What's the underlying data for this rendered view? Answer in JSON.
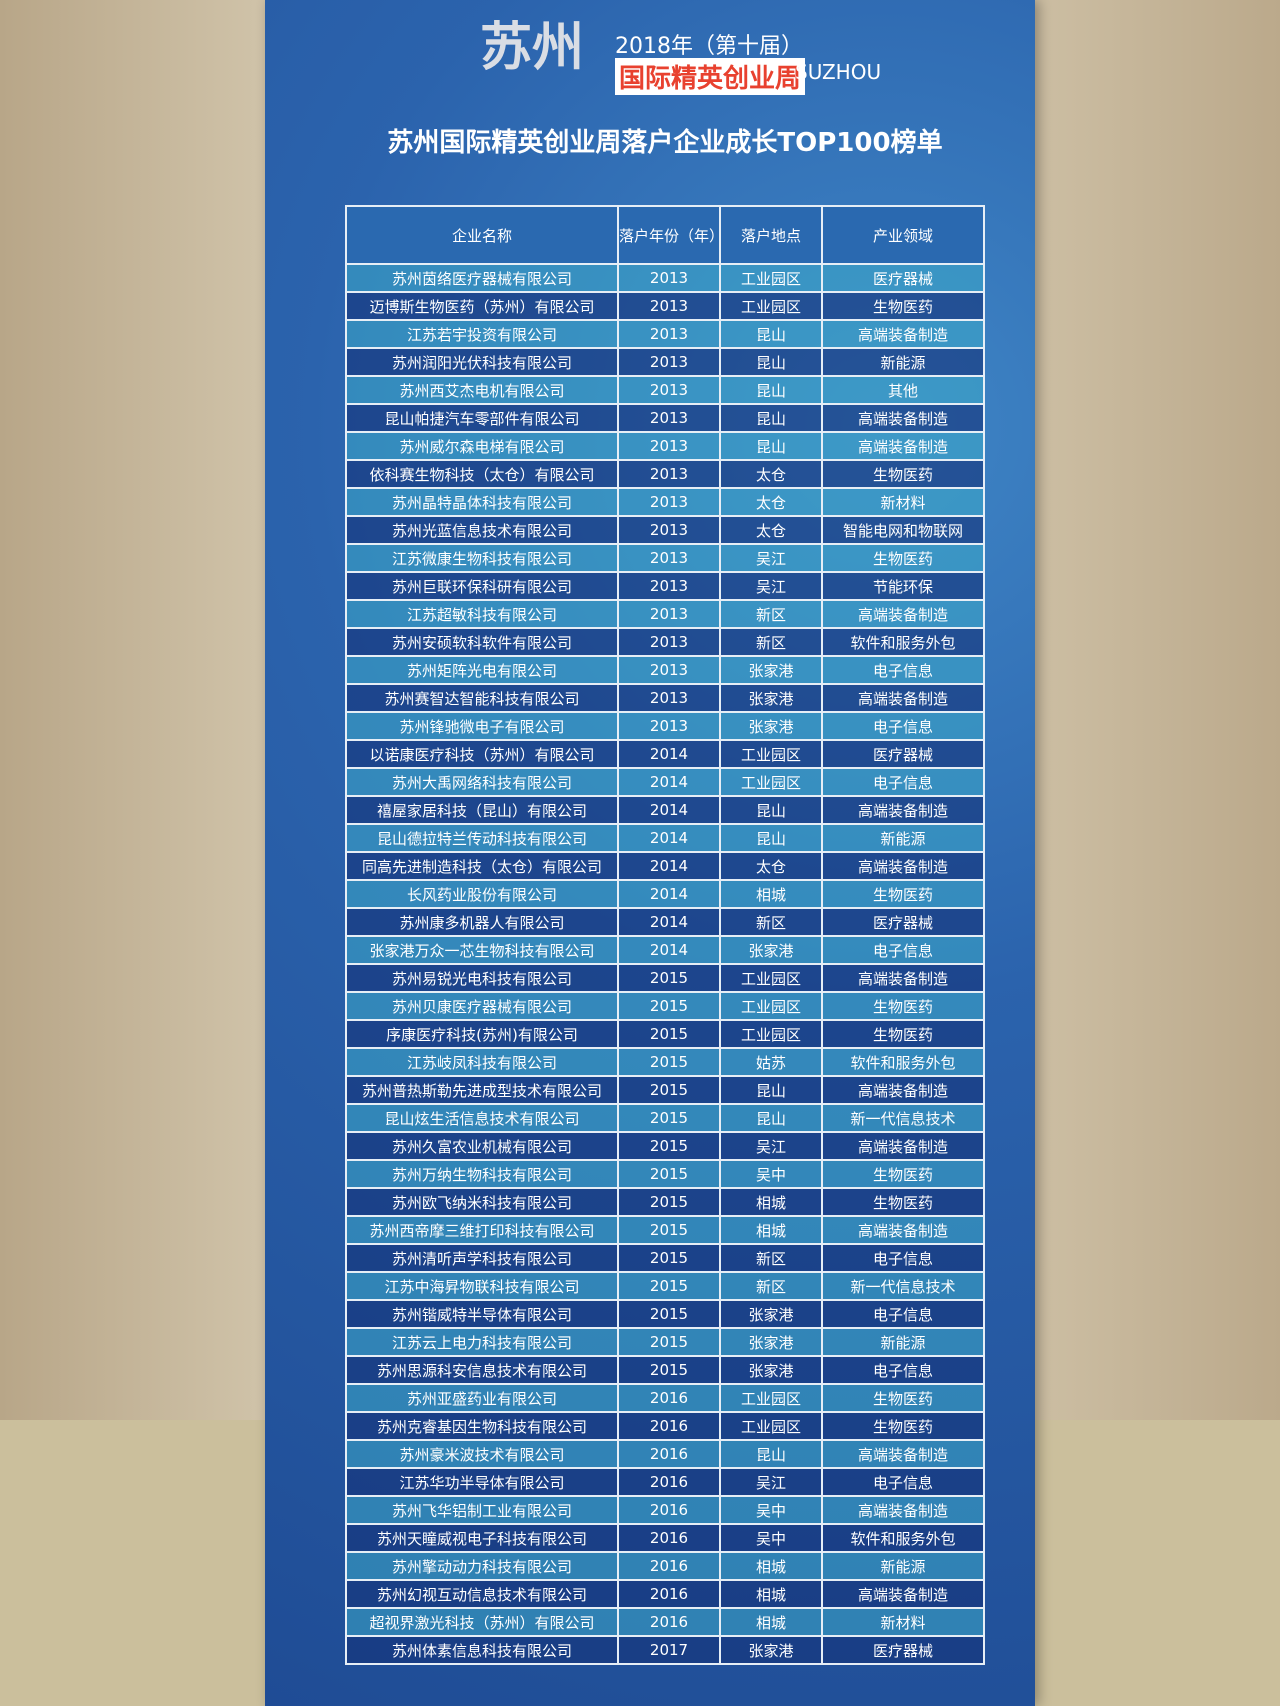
{
  "header": {
    "city": "苏州",
    "edition": "2018年（第十届）",
    "english": "SUZHOU",
    "event": "国际精英创业周"
  },
  "title": "苏州国际精英创业周落户企业成长TOP100榜单",
  "table": {
    "columns": [
      "企业名称",
      "落户年份（年）",
      "落户地点",
      "产业领域"
    ],
    "rows": [
      [
        "苏州茵络医疗器械有限公司",
        "2013",
        "工业园区",
        "医疗器械"
      ],
      [
        "迈博斯生物医药（苏州）有限公司",
        "2013",
        "工业园区",
        "生物医药"
      ],
      [
        "江苏若宇投资有限公司",
        "2013",
        "昆山",
        "高端装备制造"
      ],
      [
        "苏州润阳光伏科技有限公司",
        "2013",
        "昆山",
        "新能源"
      ],
      [
        "苏州西艾杰电机有限公司",
        "2013",
        "昆山",
        "其他"
      ],
      [
        "昆山帕捷汽车零部件有限公司",
        "2013",
        "昆山",
        "高端装备制造"
      ],
      [
        "苏州威尔森电梯有限公司",
        "2013",
        "昆山",
        "高端装备制造"
      ],
      [
        "依科赛生物科技（太仓）有限公司",
        "2013",
        "太仓",
        "生物医药"
      ],
      [
        "苏州晶特晶体科技有限公司",
        "2013",
        "太仓",
        "新材料"
      ],
      [
        "苏州光蓝信息技术有限公司",
        "2013",
        "太仓",
        "智能电网和物联网"
      ],
      [
        "江苏微康生物科技有限公司",
        "2013",
        "吴江",
        "生物医药"
      ],
      [
        "苏州巨联环保科研有限公司",
        "2013",
        "吴江",
        "节能环保"
      ],
      [
        "江苏超敏科技有限公司",
        "2013",
        "新区",
        "高端装备制造"
      ],
      [
        "苏州安硕软科软件有限公司",
        "2013",
        "新区",
        "软件和服务外包"
      ],
      [
        "苏州矩阵光电有限公司",
        "2013",
        "张家港",
        "电子信息"
      ],
      [
        "苏州赛智达智能科技有限公司",
        "2013",
        "张家港",
        "高端装备制造"
      ],
      [
        "苏州锋驰微电子有限公司",
        "2013",
        "张家港",
        "电子信息"
      ],
      [
        "以诺康医疗科技（苏州）有限公司",
        "2014",
        "工业园区",
        "医疗器械"
      ],
      [
        "苏州大禹网络科技有限公司",
        "2014",
        "工业园区",
        "电子信息"
      ],
      [
        "禧屋家居科技（昆山）有限公司",
        "2014",
        "昆山",
        "高端装备制造"
      ],
      [
        "昆山德拉特兰传动科技有限公司",
        "2014",
        "昆山",
        "新能源"
      ],
      [
        "同高先进制造科技（太仓）有限公司",
        "2014",
        "太仓",
        "高端装备制造"
      ],
      [
        "长风药业股份有限公司",
        "2014",
        "相城",
        "生物医药"
      ],
      [
        "苏州康多机器人有限公司",
        "2014",
        "新区",
        "医疗器械"
      ],
      [
        "张家港万众一芯生物科技有限公司",
        "2014",
        "张家港",
        "电子信息"
      ],
      [
        "苏州易锐光电科技有限公司",
        "2015",
        "工业园区",
        "高端装备制造"
      ],
      [
        "苏州贝康医疗器械有限公司",
        "2015",
        "工业园区",
        "生物医药"
      ],
      [
        "序康医疗科技(苏州)有限公司",
        "2015",
        "工业园区",
        "生物医药"
      ],
      [
        "江苏岐凤科技有限公司",
        "2015",
        "姑苏",
        "软件和服务外包"
      ],
      [
        "苏州普热斯勒先进成型技术有限公司",
        "2015",
        "昆山",
        "高端装备制造"
      ],
      [
        "昆山炫生活信息技术有限公司",
        "2015",
        "昆山",
        "新一代信息技术"
      ],
      [
        "苏州久富农业机械有限公司",
        "2015",
        "吴江",
        "高端装备制造"
      ],
      [
        "苏州万纳生物科技有限公司",
        "2015",
        "吴中",
        "生物医药"
      ],
      [
        "苏州欧飞纳米科技有限公司",
        "2015",
        "相城",
        "生物医药"
      ],
      [
        "苏州西帝摩三维打印科技有限公司",
        "2015",
        "相城",
        "高端装备制造"
      ],
      [
        "苏州清听声学科技有限公司",
        "2015",
        "新区",
        "电子信息"
      ],
      [
        "江苏中海昇物联科技有限公司",
        "2015",
        "新区",
        "新一代信息技术"
      ],
      [
        "苏州锴威特半导体有限公司",
        "2015",
        "张家港",
        "电子信息"
      ],
      [
        "江苏云上电力科技有限公司",
        "2015",
        "张家港",
        "新能源"
      ],
      [
        "苏州思源科安信息技术有限公司",
        "2015",
        "张家港",
        "电子信息"
      ],
      [
        "苏州亚盛药业有限公司",
        "2016",
        "工业园区",
        "生物医药"
      ],
      [
        "苏州克睿基因生物科技有限公司",
        "2016",
        "工业园区",
        "生物医药"
      ],
      [
        "苏州豪米波技术有限公司",
        "2016",
        "昆山",
        "高端装备制造"
      ],
      [
        "江苏华功半导体有限公司",
        "2016",
        "吴江",
        "电子信息"
      ],
      [
        "苏州飞华铝制工业有限公司",
        "2016",
        "吴中",
        "高端装备制造"
      ],
      [
        "苏州天瞳威视电子科技有限公司",
        "2016",
        "吴中",
        "软件和服务外包"
      ],
      [
        "苏州擎动动力科技有限公司",
        "2016",
        "相城",
        "新能源"
      ],
      [
        "苏州幻视互动信息技术有限公司",
        "2016",
        "相城",
        "高端装备制造"
      ],
      [
        "超视界激光科技（苏州）有限公司",
        "2016",
        "相城",
        "新材料"
      ],
      [
        "苏州体素信息科技有限公司",
        "2017",
        "张家港",
        "医疗器械"
      ]
    ]
  }
}
